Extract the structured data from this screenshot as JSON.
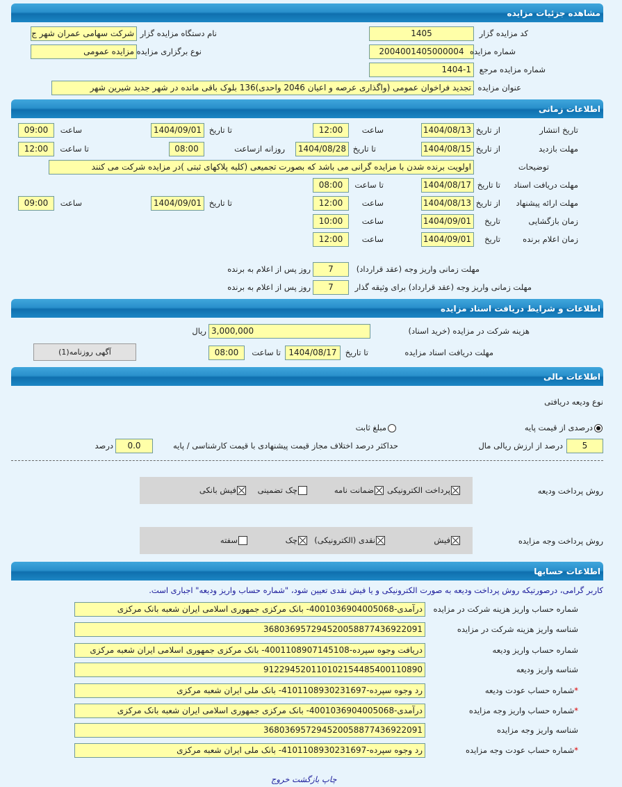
{
  "headers": {
    "details": "مشاهده جزئیات مزایده",
    "time": "اطلاعات زمانی",
    "documents": "اطلاعات و شرایط دریافت اسناد مزایده",
    "financial": "اطلاعات مالی",
    "accounts": "اطلاعات حسابها"
  },
  "details": {
    "organizer_code_label": "کد مزایده گزار",
    "organizer_code": "1405",
    "organizer_name_label": "نام دستگاه مزایده گزار",
    "organizer_name": "شرکت سهامی عمران شهر ج",
    "auction_number_label": "شماره مزایده",
    "auction_number": "2004001405000004",
    "auction_type_label": "نوع برگزاری مزایده",
    "auction_type": "مزایده عمومی",
    "reference_number_label": "شماره مزایده مرجع",
    "reference_number": "1404-1",
    "title_label": "عنوان مزایده",
    "title": "تجدید فراخوان عمومی (واگذاری عرصه و اعیان 2046 واحدی)136 بلوک باقی مانده در شهر جدید شیرین شهر"
  },
  "time": {
    "from_date": "از تاریخ",
    "to_date": "تا تاریخ",
    "date": "تاریخ",
    "hour": "ساعت",
    "to_hour": "تا ساعت",
    "daily_from_hour": "روزانه ازساعت",
    "publish": {
      "label": "تاریخ انتشار",
      "from_date": "1404/08/13",
      "from_time": "12:00",
      "to_date": "1404/09/01",
      "to_time": "09:00"
    },
    "visit": {
      "label": "مهلت بازدید",
      "from_date": "1404/08/15",
      "to_date": "1404/08/28",
      "daily_from": "08:00",
      "to_time": "12:00"
    },
    "description": {
      "label": "توضیحات",
      "value": "اولویت برنده شدن با مزایده گرانی می باشد که بصورت تجمیعی (کلیه پلاکهای ثبتی )در مزایده شرکت می کنند"
    },
    "docs_deadline": {
      "label": "مهلت دریافت اسناد",
      "to_date": "1404/08/17",
      "to_time": "08:00"
    },
    "offer": {
      "label": "مهلت ارائه پیشنهاد",
      "from_date": "1404/08/13",
      "from_time": "12:00",
      "to_date": "1404/09/01",
      "to_time": "09:00"
    },
    "opening": {
      "label": "زمان بازگشایی",
      "date": "1404/09/01",
      "time": "10:00"
    },
    "winner": {
      "label": "زمان اعلام برنده",
      "date": "1404/09/01",
      "time": "12:00"
    },
    "payment_deadline": {
      "label": "مهلت زمانی واریز وجه (عقد قرارداد)",
      "value": "7",
      "suffix": "روز پس از اعلام به برنده"
    },
    "payment_deadline_pledger": {
      "label": "مهلت زمانی واریز وجه (عقد قرارداد) برای وثیقه گذار",
      "value": "7",
      "suffix": "روز پس از اعلام به برنده"
    }
  },
  "documents": {
    "fee_label": "هزینه شرکت در مزایده (خرید اسناد)",
    "fee": "3,000,000",
    "currency": "ریال",
    "deadline_label": "مهلت دریافت اسناد مزایده",
    "to_date_label": "تا تاریخ",
    "to_date": "1404/08/17",
    "to_time_label": "تا ساعت",
    "to_time": "08:00",
    "newspaper_button": "آگهی روزنامه(1)"
  },
  "financial": {
    "deposit_type_label": "نوع ودیعه دریافتی",
    "radio_percent": "درصدی از قیمت پایه",
    "radio_fixed": "مبلغ ثابت",
    "selected": "percent",
    "percent_value": "5",
    "percent_suffix": "درصد از ارزش ریالی مال",
    "max_diff_label": "حداکثر درصد اختلاف مجاز قیمت پیشنهادی با قیمت کارشناسی / پایه",
    "max_diff_value": "0.0",
    "max_diff_suffix": "درصد",
    "deposit_methods_label": "روش پرداخت ودیعه",
    "deposit_methods": [
      {
        "label": "پرداخت الکترونیکی",
        "checked": true
      },
      {
        "label": "ضمانت نامه",
        "checked": true
      },
      {
        "label": "چک تضمینی",
        "checked": false
      },
      {
        "label": "فیش بانکی",
        "checked": true
      }
    ],
    "payment_methods_label": "روش پرداخت وجه مزایده",
    "payment_methods": [
      {
        "label": "فیش",
        "checked": true
      },
      {
        "label": "نقدی (الکترونیکی)",
        "checked": true
      },
      {
        "label": "چک",
        "checked": true
      },
      {
        "label": "سفته",
        "checked": false
      }
    ]
  },
  "accounts": {
    "note": "کاربر گرامی، درصورتیکه روش پرداخت ودیعه به صورت الکترونیکی و یا فیش نقدی تعیین شود، \"شماره حساب واریز ودیعه\" اجباری است.",
    "rows": [
      {
        "label": "شماره حساب واریز هزینه شرکت در مزایده",
        "required": false,
        "value": "درآمدی-4001036904005068- بانک مرکزی جمهوری اسلامی ایران شعبه بانک مرکزی"
      },
      {
        "label": "شناسه واریز هزینه شرکت در مزایده",
        "required": false,
        "value": "368036957294520058877436922091"
      },
      {
        "label": "شماره حساب واریز ودیعه",
        "required": false,
        "value": "دریافت وجوه سپرده-4001108907145108- بانک مرکزی جمهوری اسلامی ایران شعبه مرکزی"
      },
      {
        "label": "شناسه واریز ودیعه",
        "required": false,
        "value": "912294520110102154485400110890"
      },
      {
        "label": "شماره حساب عودت ودیعه",
        "required": true,
        "value": "رد وجوه سپرده-4101108930231697- بانک ملی ایران شعبه مرکزی"
      },
      {
        "label": "شماره حساب واریز وجه مزایده",
        "required": true,
        "value": "درآمدی-4001036904005068- بانک مرکزی جمهوری اسلامی ایران شعبه بانک مرکزی"
      },
      {
        "label": "شناسه واریز وجه مزایده",
        "required": false,
        "value": "368036957294520058877436922091"
      },
      {
        "label": "شماره حساب عودت وجه مزایده",
        "required": true,
        "value": "رد وجوه سپرده-4101108930231697- بانک ملی ایران شعبه مرکزی"
      }
    ]
  },
  "footer": {
    "print": "چاپ",
    "back": "بازگشت",
    "exit": "خروج"
  },
  "colors": {
    "background": "#e8f4fc",
    "header": "#1c86c4",
    "field": "#ffffa8",
    "note": "#1a1a9a",
    "required": "#dd0000"
  }
}
